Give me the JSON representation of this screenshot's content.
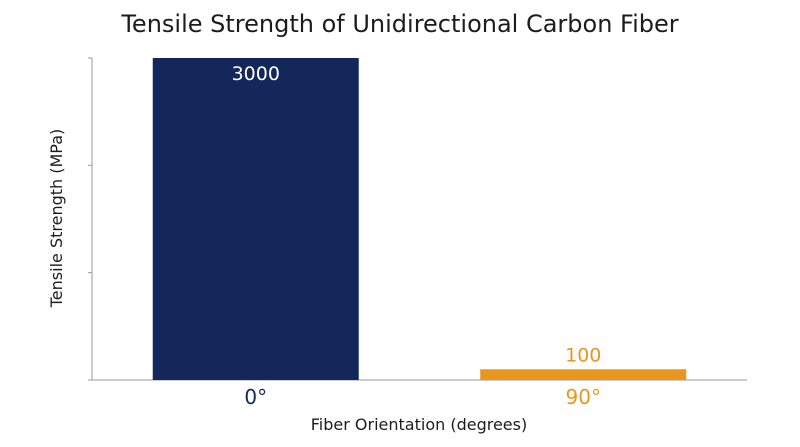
{
  "chart_data": {
    "type": "bar",
    "title": "Tensile Strength of Unidirectional Carbon Fiber",
    "xlabel": "Fiber Orientation (degrees)",
    "ylabel": "Tensile Strength (MPa)",
    "categories": [
      "0°",
      "90°"
    ],
    "values": [
      3000,
      100
    ],
    "value_labels": [
      "3000",
      "100"
    ],
    "bar_colors": [
      "#13275a",
      "#e8961e"
    ],
    "category_label_colors": [
      "#13275a",
      "#e8961e"
    ],
    "value_label_colors": [
      "#ffffff",
      "#e8961e"
    ],
    "ylim": [
      0,
      3000
    ],
    "y_ticks": [
      0,
      1000,
      2000,
      3000
    ],
    "grid": false,
    "legend": "none"
  }
}
